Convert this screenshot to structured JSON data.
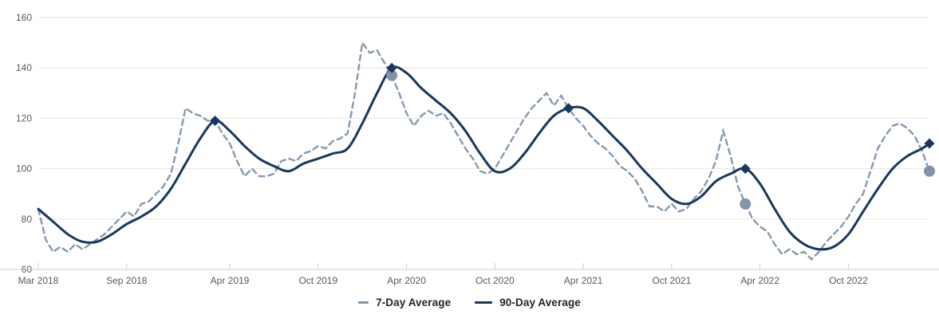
{
  "chart_data": {
    "type": "line",
    "title": "",
    "background": "#ffffff",
    "grid": "horizontal-only",
    "legend_position": "bottom-center",
    "colors": {
      "seven_day": "#8094aa",
      "ninety_day": "#17375e",
      "gridline": "#e6e6e6",
      "axis_line": "#c9cdd2",
      "tick": "#c9cdd2",
      "axis_label": "#595959",
      "legend_text": "#1f2430"
    },
    "y_axis": {
      "ticks": [
        160,
        140,
        120,
        100,
        80,
        60
      ],
      "range": [
        60,
        160
      ]
    },
    "x_axis": {
      "domain_months": [
        0,
        60.5
      ],
      "start_month_label": "Mar 2018",
      "ticks": [
        {
          "label": "Mar 2018",
          "month": 0
        },
        {
          "label": "Sep 2018",
          "month": 6
        },
        {
          "label": "Apr 2019",
          "month": 13
        },
        {
          "label": "Oct 2019",
          "month": 19
        },
        {
          "label": "Apr 2020",
          "month": 25
        },
        {
          "label": "Oct 2020",
          "month": 31
        },
        {
          "label": "Apr 2021",
          "month": 37
        },
        {
          "label": "Oct 2021",
          "month": 43
        },
        {
          "label": "Apr 2022",
          "month": 49
        },
        {
          "label": "Oct 2022",
          "month": 55
        }
      ]
    },
    "series": [
      {
        "name": "7-Day Average",
        "style": "dashed",
        "color": "#8094aa",
        "points": [
          [
            0,
            84
          ],
          [
            0.5,
            72
          ],
          [
            1,
            67
          ],
          [
            1.5,
            69
          ],
          [
            2,
            67
          ],
          [
            2.5,
            70
          ],
          [
            3,
            68
          ],
          [
            3.5,
            70
          ],
          [
            4,
            72
          ],
          [
            4.5,
            74
          ],
          [
            5,
            77
          ],
          [
            5.5,
            80
          ],
          [
            6,
            83
          ],
          [
            6.5,
            81
          ],
          [
            7,
            86
          ],
          [
            7.5,
            87
          ],
          [
            8,
            90
          ],
          [
            8.5,
            93
          ],
          [
            9,
            98
          ],
          [
            9.5,
            110
          ],
          [
            10,
            124
          ],
          [
            10.5,
            122
          ],
          [
            11,
            121
          ],
          [
            11.5,
            119
          ],
          [
            12,
            119
          ],
          [
            12.5,
            114
          ],
          [
            13,
            110
          ],
          [
            13.5,
            103
          ],
          [
            14,
            97
          ],
          [
            14.5,
            100
          ],
          [
            15,
            97
          ],
          [
            15.5,
            97
          ],
          [
            16,
            98
          ],
          [
            16.5,
            103
          ],
          [
            17,
            104
          ],
          [
            17.5,
            103
          ],
          [
            18,
            106
          ],
          [
            18.5,
            107
          ],
          [
            19,
            109
          ],
          [
            19.5,
            108
          ],
          [
            20,
            111
          ],
          [
            20.5,
            112
          ],
          [
            21,
            114
          ],
          [
            21.5,
            130
          ],
          [
            22,
            150
          ],
          [
            22.5,
            146
          ],
          [
            23,
            147
          ],
          [
            23.5,
            142
          ],
          [
            24,
            137
          ],
          [
            24.5,
            130
          ],
          [
            25,
            122
          ],
          [
            25.5,
            117
          ],
          [
            26,
            121
          ],
          [
            26.5,
            123
          ],
          [
            27,
            121
          ],
          [
            27.5,
            122
          ],
          [
            28,
            118
          ],
          [
            28.5,
            113
          ],
          [
            29,
            108
          ],
          [
            29.5,
            104
          ],
          [
            30,
            99
          ],
          [
            30.5,
            98
          ],
          [
            31,
            100
          ],
          [
            31.5,
            105
          ],
          [
            32,
            110
          ],
          [
            32.5,
            115
          ],
          [
            33,
            120
          ],
          [
            33.5,
            124
          ],
          [
            34,
            127
          ],
          [
            34.5,
            130
          ],
          [
            35,
            125
          ],
          [
            35.5,
            129
          ],
          [
            36,
            124
          ],
          [
            36.5,
            120
          ],
          [
            37,
            117
          ],
          [
            37.5,
            113
          ],
          [
            38,
            110
          ],
          [
            38.5,
            108
          ],
          [
            39,
            105
          ],
          [
            39.5,
            101
          ],
          [
            40,
            99
          ],
          [
            40.5,
            96
          ],
          [
            41,
            91
          ],
          [
            41.5,
            85
          ],
          [
            42,
            85
          ],
          [
            42.5,
            83
          ],
          [
            43,
            86
          ],
          [
            43.5,
            83
          ],
          [
            44,
            84
          ],
          [
            44.5,
            88
          ],
          [
            45,
            91
          ],
          [
            45.5,
            96
          ],
          [
            46,
            103
          ],
          [
            46.5,
            115
          ],
          [
            47,
            105
          ],
          [
            47.5,
            93
          ],
          [
            48,
            86
          ],
          [
            48.5,
            80
          ],
          [
            49,
            77
          ],
          [
            49.5,
            75
          ],
          [
            50,
            70
          ],
          [
            50.5,
            66
          ],
          [
            51,
            68
          ],
          [
            51.5,
            66
          ],
          [
            52,
            67
          ],
          [
            52.5,
            64
          ],
          [
            53,
            67
          ],
          [
            53.5,
            71
          ],
          [
            54,
            74
          ],
          [
            54.5,
            77
          ],
          [
            55,
            81
          ],
          [
            55.5,
            86
          ],
          [
            56,
            90
          ],
          [
            56.5,
            99
          ],
          [
            57,
            108
          ],
          [
            57.5,
            113
          ],
          [
            58,
            117
          ],
          [
            58.5,
            118
          ],
          [
            59,
            116
          ],
          [
            59.5,
            113
          ],
          [
            60,
            107
          ],
          [
            60.5,
            99
          ]
        ]
      },
      {
        "name": "90-Day Average",
        "style": "solid",
        "color": "#17375e",
        "points": [
          [
            0,
            84
          ],
          [
            1,
            79
          ],
          [
            2,
            74
          ],
          [
            3,
            71
          ],
          [
            4,
            71
          ],
          [
            5,
            74
          ],
          [
            6,
            78
          ],
          [
            7,
            81
          ],
          [
            8,
            85
          ],
          [
            9,
            92
          ],
          [
            10,
            102
          ],
          [
            11,
            112
          ],
          [
            12,
            119
          ],
          [
            13,
            115
          ],
          [
            14,
            109
          ],
          [
            15,
            104
          ],
          [
            16,
            101
          ],
          [
            17,
            99
          ],
          [
            18,
            102
          ],
          [
            19,
            104
          ],
          [
            20,
            106
          ],
          [
            21,
            108
          ],
          [
            22,
            118
          ],
          [
            23,
            130
          ],
          [
            24,
            140
          ],
          [
            25,
            138
          ],
          [
            26,
            132
          ],
          [
            27,
            127
          ],
          [
            28,
            122
          ],
          [
            29,
            115
          ],
          [
            30,
            106
          ],
          [
            31,
            99
          ],
          [
            32,
            100
          ],
          [
            33,
            106
          ],
          [
            34,
            114
          ],
          [
            35,
            121
          ],
          [
            36,
            124
          ],
          [
            37,
            124
          ],
          [
            38,
            119
          ],
          [
            39,
            113
          ],
          [
            40,
            107
          ],
          [
            41,
            100
          ],
          [
            42,
            94
          ],
          [
            43,
            88
          ],
          [
            44,
            86
          ],
          [
            45,
            89
          ],
          [
            46,
            95
          ],
          [
            47,
            98
          ],
          [
            48,
            100
          ],
          [
            49,
            94
          ],
          [
            50,
            84
          ],
          [
            51,
            75
          ],
          [
            52,
            70
          ],
          [
            53,
            68
          ],
          [
            54,
            69
          ],
          [
            55,
            74
          ],
          [
            56,
            83
          ],
          [
            57,
            92
          ],
          [
            58,
            100
          ],
          [
            59,
            105
          ],
          [
            60,
            108
          ],
          [
            60.5,
            110
          ]
        ]
      }
    ],
    "markers": {
      "diamonds": {
        "series": "90-Day Average",
        "color": "#17375e",
        "points": [
          [
            12,
            119
          ],
          [
            24,
            140
          ],
          [
            36,
            124
          ],
          [
            48,
            100
          ],
          [
            60.5,
            110
          ]
        ]
      },
      "circles": {
        "series": "7-Day Average",
        "color": "#8094aa",
        "points": [
          [
            24,
            137
          ],
          [
            48,
            86
          ],
          [
            60.5,
            99
          ]
        ]
      }
    },
    "legend": [
      {
        "label": "7-Day Average",
        "swatch": "dash",
        "color": "#8094aa"
      },
      {
        "label": "90-Day Average",
        "swatch": "solid",
        "color": "#17375e"
      }
    ]
  }
}
